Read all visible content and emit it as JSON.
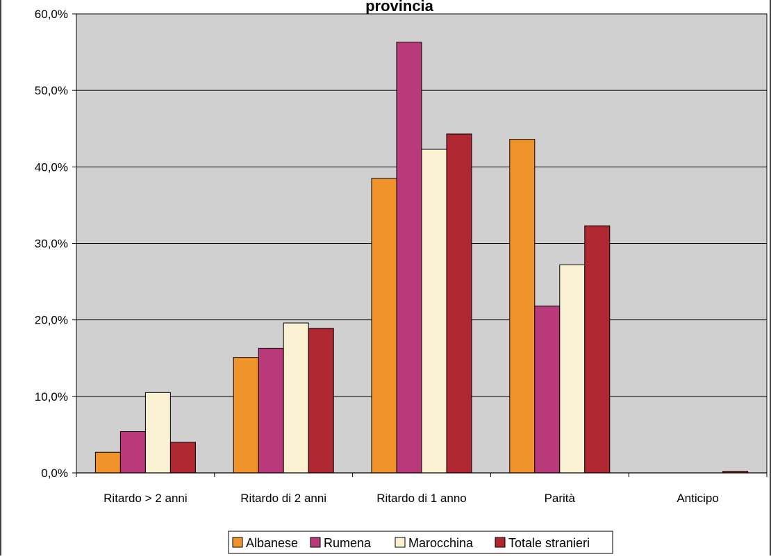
{
  "chart_data": {
    "type": "bar",
    "title": "provincia",
    "xlabel": "",
    "ylabel": "",
    "ylim": [
      0,
      60
    ],
    "y_tick_values": [
      0,
      10,
      20,
      30,
      40,
      50,
      60
    ],
    "y_tick_labels": [
      "0,0%",
      "10,0%",
      "20,0%",
      "30,0%",
      "40,0%",
      "50,0%",
      "60,0%"
    ],
    "grid": true,
    "legend_position": "bottom",
    "categories": [
      "Ritardo > 2 anni",
      "Ritardo di 2 anni",
      "Ritardo di 1 anno",
      "Parità",
      "Anticipo"
    ],
    "series": [
      {
        "name": "Albanese",
        "color": "#f0932b",
        "values": [
          2.7,
          15.1,
          38.5,
          43.6,
          0.0
        ]
      },
      {
        "name": "Rumena",
        "color": "#b83a7a",
        "values": [
          5.4,
          16.3,
          56.3,
          21.8,
          0.0
        ]
      },
      {
        "name": "Marocchina",
        "color": "#faf0d2",
        "values": [
          10.5,
          19.6,
          42.3,
          27.2,
          0.0
        ]
      },
      {
        "name": "Totale stranieri",
        "color": "#ae2731",
        "values": [
          4.0,
          18.9,
          44.3,
          32.3,
          0.2
        ]
      }
    ],
    "plot_background": "#d0d0d0"
  }
}
